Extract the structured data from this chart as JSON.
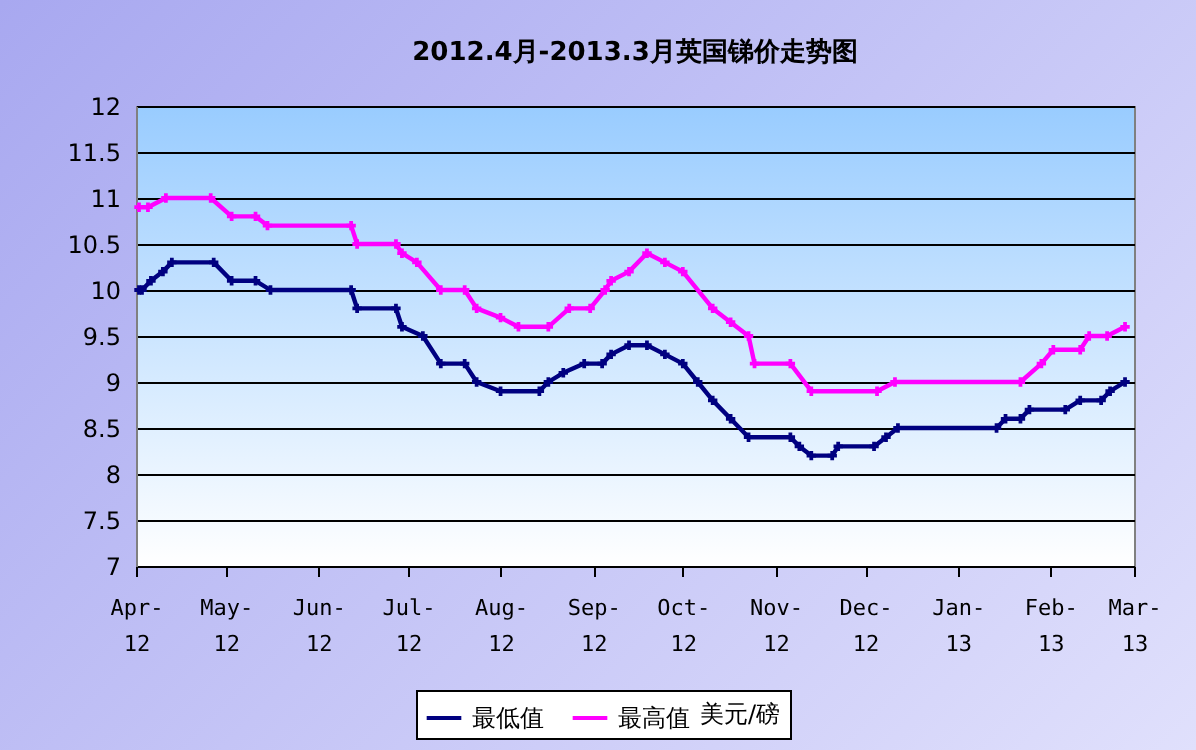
{
  "chart_data": {
    "type": "line",
    "title": "2012.4月-2013.3月英国锑价走势图",
    "legend_title": "美元/磅",
    "xlim": [
      "2012-04-01",
      "2013-03-01"
    ],
    "xticks": [
      {
        "value": "2012-04-01",
        "label": "Apr-12"
      },
      {
        "value": "2012-05-01",
        "label": "May-12"
      },
      {
        "value": "2012-06-01",
        "label": "Jun-12"
      },
      {
        "value": "2012-07-01",
        "label": "Jul-12"
      },
      {
        "value": "2012-08-01",
        "label": "Aug-12"
      },
      {
        "value": "2012-09-01",
        "label": "Sep-12"
      },
      {
        "value": "2012-10-01",
        "label": "Oct-12"
      },
      {
        "value": "2012-11-01",
        "label": "Nov-12"
      },
      {
        "value": "2012-12-01",
        "label": "Dec-12"
      },
      {
        "value": "2013-01-01",
        "label": "Jan-13"
      },
      {
        "value": "2013-02-01",
        "label": "Feb-13"
      },
      {
        "value": "2013-03-01",
        "label": "Mar-13"
      }
    ],
    "ylim": [
      7,
      12
    ],
    "yticks": [
      7,
      7.5,
      8,
      8.5,
      9,
      9.5,
      10,
      10.5,
      11,
      11.5,
      12
    ],
    "grid": "y",
    "legend": "bottom",
    "marker": "cross",
    "series": [
      {
        "name": "最低值",
        "color": "#000080",
        "x": [
          "2012-04-02",
          "2012-04-03",
          "2012-04-06",
          "2012-04-10",
          "2012-04-13",
          "2012-04-27",
          "2012-05-03",
          "2012-05-11",
          "2012-05-16",
          "2012-06-12",
          "2012-06-14",
          "2012-06-27",
          "2012-06-29",
          "2012-07-06",
          "2012-07-12",
          "2012-07-20",
          "2012-07-24",
          "2012-08-01",
          "2012-08-14",
          "2012-08-17",
          "2012-08-22",
          "2012-08-29",
          "2012-09-04",
          "2012-09-07",
          "2012-09-13",
          "2012-09-19",
          "2012-09-25",
          "2012-10-01",
          "2012-10-06",
          "2012-10-11",
          "2012-10-17",
          "2012-10-23",
          "2012-11-06",
          "2012-11-09",
          "2012-11-13",
          "2012-11-20",
          "2012-11-22",
          "2012-12-04",
          "2012-12-08",
          "2012-12-12",
          "2013-01-14",
          "2013-01-17",
          "2013-01-22",
          "2013-01-25",
          "2013-02-06",
          "2013-02-11",
          "2013-02-18",
          "2013-02-21",
          "2013-02-26"
        ],
        "values": [
          10.0,
          10.0,
          10.1,
          10.2,
          10.3,
          10.3,
          10.1,
          10.1,
          10.0,
          10.0,
          9.8,
          9.8,
          9.6,
          9.5,
          9.2,
          9.2,
          9.0,
          8.9,
          8.9,
          9.0,
          9.1,
          9.2,
          9.2,
          9.3,
          9.4,
          9.4,
          9.3,
          9.2,
          9.0,
          8.8,
          8.6,
          8.4,
          8.4,
          8.3,
          8.2,
          8.2,
          8.3,
          8.3,
          8.4,
          8.5,
          8.5,
          8.6,
          8.6,
          8.7,
          8.7,
          8.8,
          8.8,
          8.9,
          9.0
        ]
      },
      {
        "name": "最高值",
        "color": "#ff00ff",
        "x": [
          "2012-04-02",
          "2012-04-05",
          "2012-04-11",
          "2012-04-26",
          "2012-05-03",
          "2012-05-11",
          "2012-05-15",
          "2012-06-12",
          "2012-06-14",
          "2012-06-27",
          "2012-06-29",
          "2012-07-04",
          "2012-07-12",
          "2012-07-20",
          "2012-07-24",
          "2012-08-01",
          "2012-08-07",
          "2012-08-17",
          "2012-08-24",
          "2012-08-31",
          "2012-09-05",
          "2012-09-07",
          "2012-09-13",
          "2012-09-19",
          "2012-09-25",
          "2012-10-01",
          "2012-10-11",
          "2012-10-17",
          "2012-10-23",
          "2012-10-25",
          "2012-11-06",
          "2012-11-13",
          "2012-12-05",
          "2012-12-11",
          "2013-01-22",
          "2013-01-29",
          "2013-02-02",
          "2013-02-11",
          "2013-02-14",
          "2013-02-20",
          "2013-02-26"
        ],
        "values": [
          10.9,
          10.9,
          11.0,
          11.0,
          10.8,
          10.8,
          10.7,
          10.7,
          10.5,
          10.5,
          10.4,
          10.3,
          10.0,
          10.0,
          9.8,
          9.7,
          9.6,
          9.6,
          9.8,
          9.8,
          10.0,
          10.1,
          10.2,
          10.4,
          10.3,
          10.2,
          9.8,
          9.65,
          9.5,
          9.2,
          9.2,
          8.9,
          8.9,
          9.0,
          9.0,
          9.2,
          9.35,
          9.35,
          9.5,
          9.5,
          9.6
        ]
      }
    ]
  }
}
